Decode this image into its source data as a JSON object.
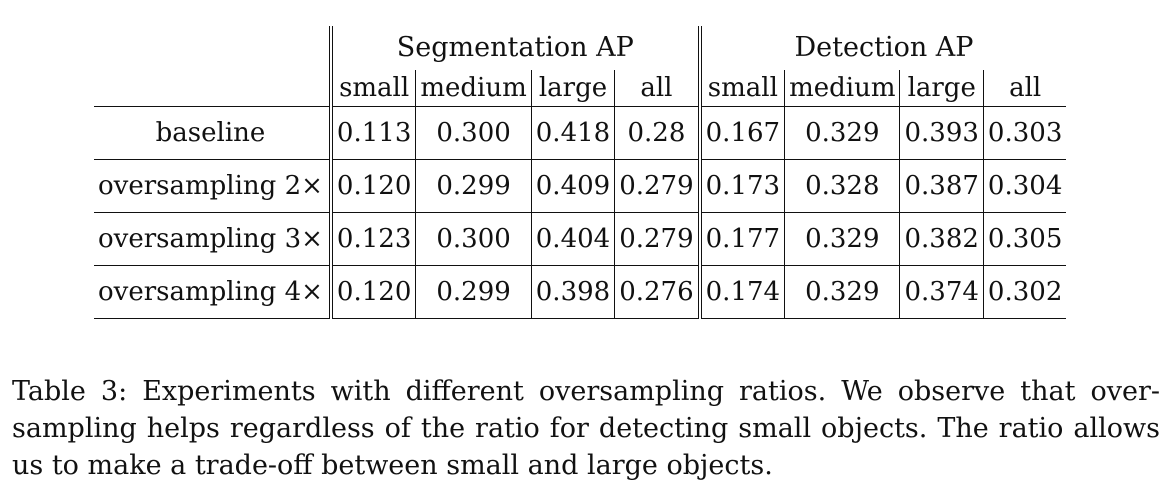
{
  "table": {
    "group_headers": [
      "Segmentation AP",
      "Detection AP"
    ],
    "column_headers": [
      "small",
      "medium",
      "large",
      "all",
      "small",
      "medium",
      "large",
      "all"
    ],
    "rows": [
      {
        "label": "baseline",
        "values": [
          "0.113",
          "0.300",
          "0.418",
          "0.28",
          "0.167",
          "0.329",
          "0.393",
          "0.303"
        ],
        "bold": [
          false,
          false,
          false,
          false,
          false,
          false,
          false,
          false
        ]
      },
      {
        "label": "oversampling 2×",
        "values": [
          "0.120",
          "0.299",
          "0.409",
          "0.279",
          "0.173",
          "0.328",
          "0.387",
          "0.304"
        ],
        "bold": [
          false,
          false,
          false,
          false,
          false,
          false,
          false,
          false
        ]
      },
      {
        "label": "oversampling 3×",
        "values": [
          "0.123",
          "0.300",
          "0.404",
          "0.279",
          "0.177",
          "0.329",
          "0.382",
          "0.305"
        ],
        "bold": [
          true,
          false,
          false,
          false,
          true,
          false,
          false,
          true
        ]
      },
      {
        "label": "oversampling 4×",
        "values": [
          "0.120",
          "0.299",
          "0.398",
          "0.276",
          "0.174",
          "0.329",
          "0.374",
          "0.302"
        ],
        "bold": [
          false,
          false,
          false,
          false,
          false,
          false,
          false,
          false
        ]
      }
    ]
  },
  "caption": "Table 3: Experiments with different oversampling ratios. We observe that over-sampling helps regardless of the ratio for detecting small objects. The ratio allows us to make a trade-off between small and large objects."
}
